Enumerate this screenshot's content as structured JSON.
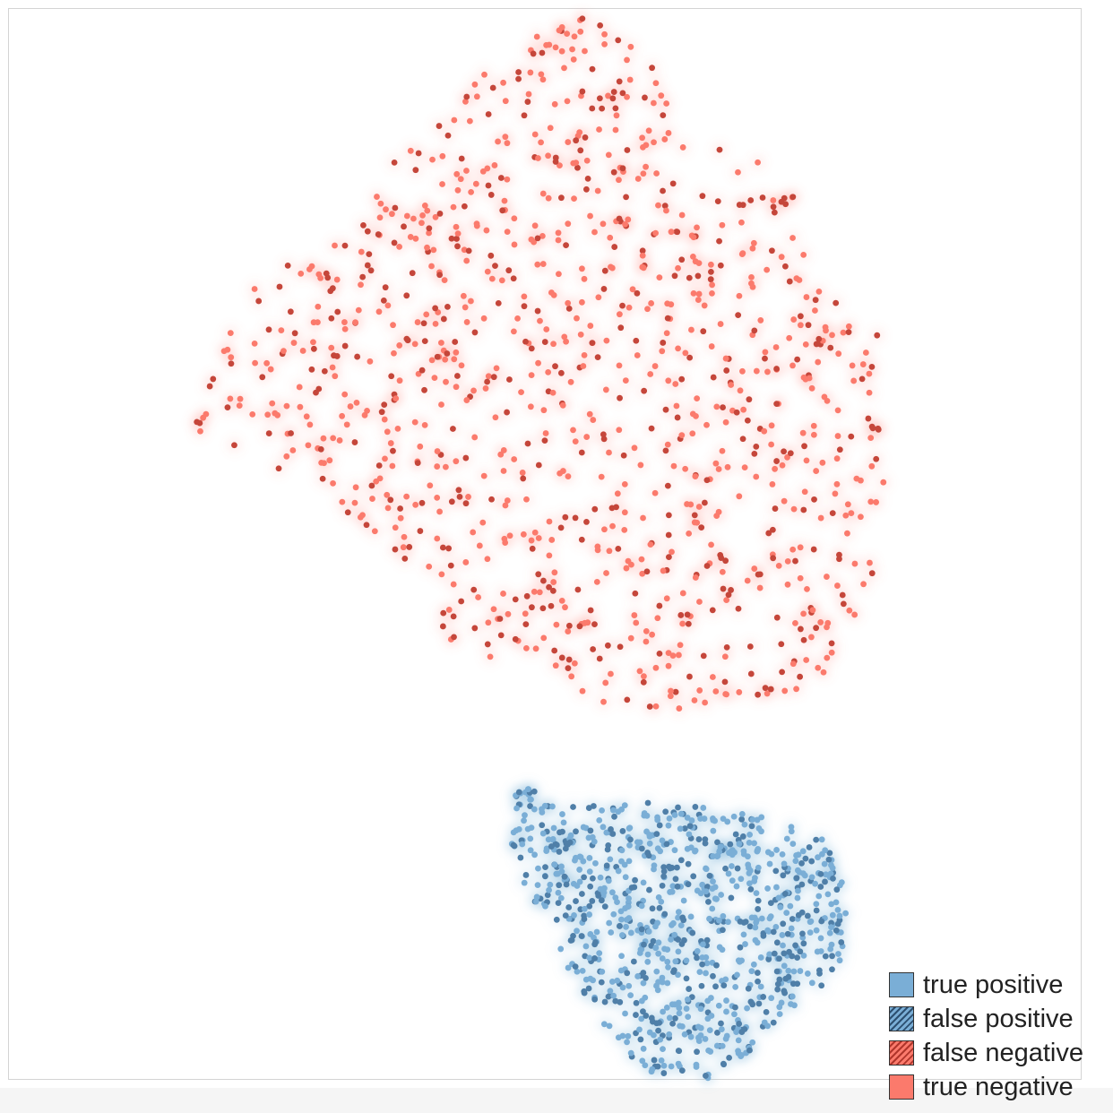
{
  "chart_data": {
    "type": "scatter",
    "title": "",
    "xlabel": "",
    "ylabel": "",
    "axes_visible": false,
    "grid": false,
    "legend_placement": "bottom-right",
    "xlim": [
      0,
      100
    ],
    "ylim": [
      0,
      100
    ],
    "colors": {
      "positive": "#7aaed6",
      "positive_dark": "#4f7fa8",
      "negative": "#fb7a6c",
      "negative_dark": "#c5463a"
    },
    "legend": [
      {
        "key": "tp",
        "label": "true positive"
      },
      {
        "key": "fp",
        "label": "false positive"
      },
      {
        "key": "fn",
        "label": "false negative"
      },
      {
        "key": "tn",
        "label": "true negative"
      }
    ],
    "clusters": [
      {
        "name": "negative",
        "color_key": "negative",
        "extent": {
          "x": [
            17,
            83
          ],
          "y": [
            34,
            99
          ]
        },
        "highlighted_points": [
          {
            "x": 53.5,
            "y": 99.1
          },
          {
            "x": 17.8,
            "y": 61.3
          },
          {
            "x": 61,
            "y": 83
          },
          {
            "x": 40.5,
            "y": 42.3
          },
          {
            "x": 81,
            "y": 69.5
          },
          {
            "x": 23.3,
            "y": 72.7
          },
          {
            "x": 63.5,
            "y": 37.6
          },
          {
            "x": 60,
            "y": 94.5
          },
          {
            "x": 59.8,
            "y": 34.8
          }
        ]
      },
      {
        "name": "positive",
        "color_key": "positive",
        "extent": {
          "x": [
            46,
            78
          ],
          "y": [
            0,
            28
          ]
        },
        "highlighted_points": [
          {
            "x": 47.6,
            "y": 26.8
          },
          {
            "x": 76.5,
            "y": 20.5
          },
          {
            "x": 65,
            "y": 0.3
          },
          {
            "x": 52,
            "y": 22
          },
          {
            "x": 62,
            "y": 10
          }
        ]
      }
    ]
  }
}
